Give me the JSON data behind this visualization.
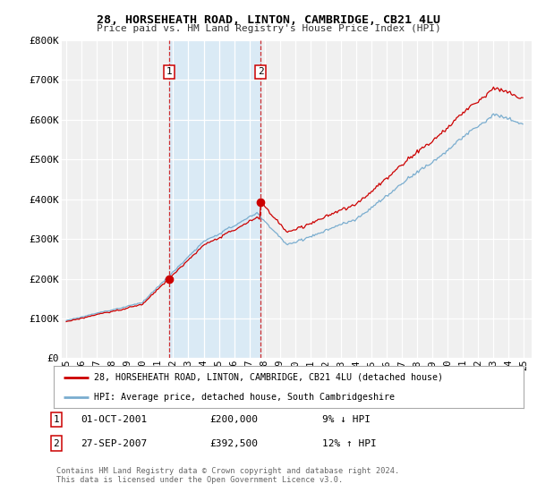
{
  "title": "28, HORSEHEATH ROAD, LINTON, CAMBRIDGE, CB21 4LU",
  "subtitle": "Price paid vs. HM Land Registry's House Price Index (HPI)",
  "ylabel_ticks": [
    "£0",
    "£100K",
    "£200K",
    "£300K",
    "£400K",
    "£500K",
    "£600K",
    "£700K",
    "£800K"
  ],
  "ytick_values": [
    0,
    100000,
    200000,
    300000,
    400000,
    500000,
    600000,
    700000,
    800000
  ],
  "ylim": [
    0,
    800000
  ],
  "xlim_start": 1994.7,
  "xlim_end": 2025.5,
  "sale1_x": 2001.75,
  "sale1_y": 200000,
  "sale2_x": 2007.73,
  "sale2_y": 392500,
  "red_line_color": "#cc0000",
  "blue_line_color": "#7aadcf",
  "shade_color": "#daeaf5",
  "vline_color": "#cc0000",
  "marker_color": "#cc0000",
  "legend_label1": "28, HORSEHEATH ROAD, LINTON, CAMBRIDGE, CB21 4LU (detached house)",
  "legend_label2": "HPI: Average price, detached house, South Cambridgeshire",
  "sale1_date": "01-OCT-2001",
  "sale1_price": "£200,000",
  "sale1_hpi": "9% ↓ HPI",
  "sale2_date": "27-SEP-2007",
  "sale2_price": "£392,500",
  "sale2_hpi": "12% ↑ HPI",
  "footer": "Contains HM Land Registry data © Crown copyright and database right 2024.\nThis data is licensed under the Open Government Licence v3.0.",
  "background_color": "#f0f0f0"
}
